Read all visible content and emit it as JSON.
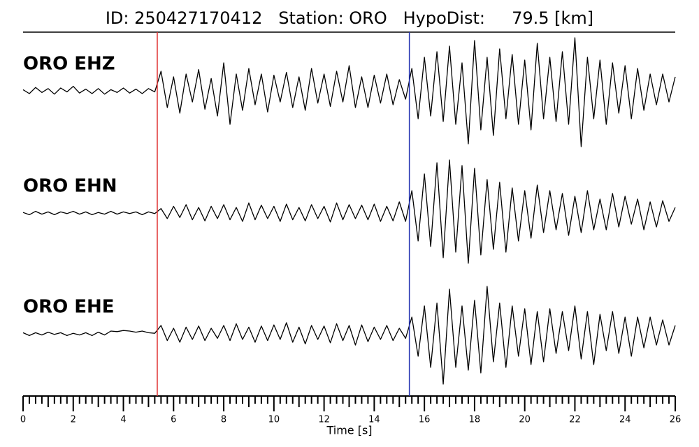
{
  "chart_data": {
    "type": "line",
    "title": "ID: 250427170412   Station: ORO   HypoDist:     79.5 [km]",
    "xlabel": "Time [s]",
    "xlim": [
      0,
      26
    ],
    "xticks": [
      0,
      2,
      4,
      6,
      8,
      10,
      12,
      14,
      16,
      18,
      20,
      22,
      24,
      26
    ],
    "minor_tick_step": 0.25,
    "label_color": "#4c9a0f",
    "markers": [
      {
        "x": 5.35,
        "color": "#e03030"
      },
      {
        "x": 15.4,
        "color": "#2030b0"
      }
    ],
    "x": [
      0,
      0.25,
      0.5,
      0.75,
      1,
      1.25,
      1.5,
      1.75,
      2,
      2.25,
      2.5,
      2.75,
      3,
      3.25,
      3.5,
      3.75,
      4,
      4.25,
      4.5,
      4.75,
      5,
      5.25,
      5.5,
      5.75,
      6,
      6.25,
      6.5,
      6.75,
      7,
      7.25,
      7.5,
      7.75,
      8,
      8.25,
      8.5,
      8.75,
      9,
      9.25,
      9.5,
      9.75,
      10,
      10.25,
      10.5,
      10.75,
      11,
      11.25,
      11.5,
      11.75,
      12,
      12.25,
      12.5,
      12.75,
      13,
      13.25,
      13.5,
      13.75,
      14,
      14.25,
      14.5,
      14.75,
      15,
      15.25,
      15.5,
      15.75,
      16,
      16.25,
      16.5,
      16.75,
      17,
      17.25,
      17.5,
      17.75,
      18,
      18.25,
      18.5,
      18.75,
      19,
      19.25,
      19.5,
      19.75,
      20,
      20.25,
      20.5,
      20.75,
      21,
      21.25,
      21.5,
      21.75,
      22,
      22.25,
      22.5,
      22.75,
      23,
      23.25,
      23.5,
      23.75,
      24,
      24.25,
      24.5,
      24.75,
      25,
      25.25,
      25.5,
      25.75,
      26
    ],
    "series": [
      {
        "name": "ORO EHZ",
        "color": "#000000",
        "values": [
          0.02,
          -0.05,
          0.06,
          -0.03,
          0.04,
          -0.06,
          0.05,
          -0.02,
          0.08,
          -0.04,
          0.03,
          -0.05,
          0.04,
          -0.06,
          0.02,
          -0.03,
          0.05,
          -0.04,
          0.03,
          -0.05,
          0.04,
          -0.02,
          0.35,
          -0.3,
          0.25,
          -0.4,
          0.3,
          -0.2,
          0.38,
          -0.33,
          0.22,
          -0.45,
          0.5,
          -0.6,
          0.3,
          -0.35,
          0.4,
          -0.25,
          0.3,
          -0.38,
          0.28,
          -0.2,
          0.33,
          -0.3,
          0.25,
          -0.35,
          0.4,
          -0.22,
          0.3,
          -0.28,
          0.35,
          -0.2,
          0.45,
          -0.3,
          0.25,
          -0.3,
          0.28,
          -0.22,
          0.3,
          -0.25,
          0.2,
          -0.15,
          0.4,
          -0.5,
          0.6,
          -0.45,
          0.7,
          -0.55,
          0.8,
          -0.6,
          0.5,
          -0.95,
          0.9,
          -0.7,
          0.6,
          -0.8,
          0.75,
          -0.5,
          0.65,
          -0.6,
          0.55,
          -0.7,
          0.85,
          -0.5,
          0.6,
          -0.55,
          0.7,
          -0.6,
          0.95,
          -1.0,
          0.6,
          -0.5,
          0.55,
          -0.6,
          0.5,
          -0.4,
          0.45,
          -0.5,
          0.4,
          -0.35,
          0.3,
          -0.25,
          0.3,
          -0.2,
          0.25
        ]
      },
      {
        "name": "ORO EHN",
        "color": "#000000",
        "values": [
          0.01,
          -0.03,
          0.03,
          -0.02,
          0.02,
          -0.03,
          0.02,
          -0.01,
          0.03,
          -0.02,
          0.02,
          -0.03,
          0.01,
          -0.02,
          0.03,
          -0.02,
          0.02,
          -0.01,
          0.02,
          -0.03,
          0.02,
          -0.01,
          0.08,
          -0.1,
          0.12,
          -0.08,
          0.15,
          -0.12,
          0.1,
          -0.14,
          0.12,
          -0.1,
          0.15,
          -0.12,
          0.1,
          -0.15,
          0.18,
          -0.12,
          0.14,
          -0.1,
          0.12,
          -0.15,
          0.16,
          -0.12,
          0.1,
          -0.14,
          0.15,
          -0.1,
          0.12,
          -0.16,
          0.18,
          -0.12,
          0.15,
          -0.1,
          0.14,
          -0.12,
          0.16,
          -0.15,
          0.12,
          -0.14,
          0.2,
          -0.15,
          0.4,
          -0.5,
          0.7,
          -0.6,
          0.9,
          -0.8,
          0.95,
          -0.7,
          0.85,
          -0.9,
          0.8,
          -0.75,
          0.6,
          -0.65,
          0.55,
          -0.7,
          0.45,
          -0.5,
          0.4,
          -0.45,
          0.5,
          -0.35,
          0.4,
          -0.3,
          0.35,
          -0.4,
          0.3,
          -0.35,
          0.4,
          -0.3,
          0.25,
          -0.3,
          0.35,
          -0.25,
          0.3,
          -0.2,
          0.25,
          -0.3,
          0.2,
          -0.25,
          0.22,
          -0.15,
          0.1
        ]
      },
      {
        "name": "ORO EHE",
        "color": "#000000",
        "values": [
          0.02,
          -0.03,
          0.02,
          -0.02,
          0.03,
          -0.01,
          0.02,
          -0.03,
          0.01,
          -0.02,
          0.02,
          -0.03,
          0.03,
          -0.02,
          0.05,
          0.04,
          0.06,
          0.05,
          0.03,
          0.05,
          0.02,
          0.01,
          0.15,
          -0.12,
          0.1,
          -0.15,
          0.12,
          -0.1,
          0.14,
          -0.12,
          0.1,
          -0.08,
          0.15,
          -0.12,
          0.18,
          -0.1,
          0.12,
          -0.15,
          0.14,
          -0.12,
          0.16,
          -0.1,
          0.2,
          -0.15,
          0.12,
          -0.18,
          0.15,
          -0.1,
          0.14,
          -0.16,
          0.18,
          -0.12,
          0.15,
          -0.2,
          0.16,
          -0.14,
          0.12,
          -0.1,
          0.15,
          -0.12,
          0.1,
          -0.08,
          0.3,
          -0.4,
          0.5,
          -0.6,
          0.55,
          -0.9,
          0.8,
          -0.6,
          0.5,
          -0.65,
          0.6,
          -0.7,
          0.85,
          -0.5,
          0.55,
          -0.6,
          0.5,
          -0.4,
          0.45,
          -0.55,
          0.4,
          -0.5,
          0.45,
          -0.35,
          0.4,
          -0.3,
          0.5,
          -0.45,
          0.4,
          -0.55,
          0.35,
          -0.3,
          0.4,
          -0.35,
          0.3,
          -0.4,
          0.3,
          -0.25,
          0.3,
          -0.2,
          0.25,
          -0.2,
          0.15
        ]
      }
    ]
  }
}
